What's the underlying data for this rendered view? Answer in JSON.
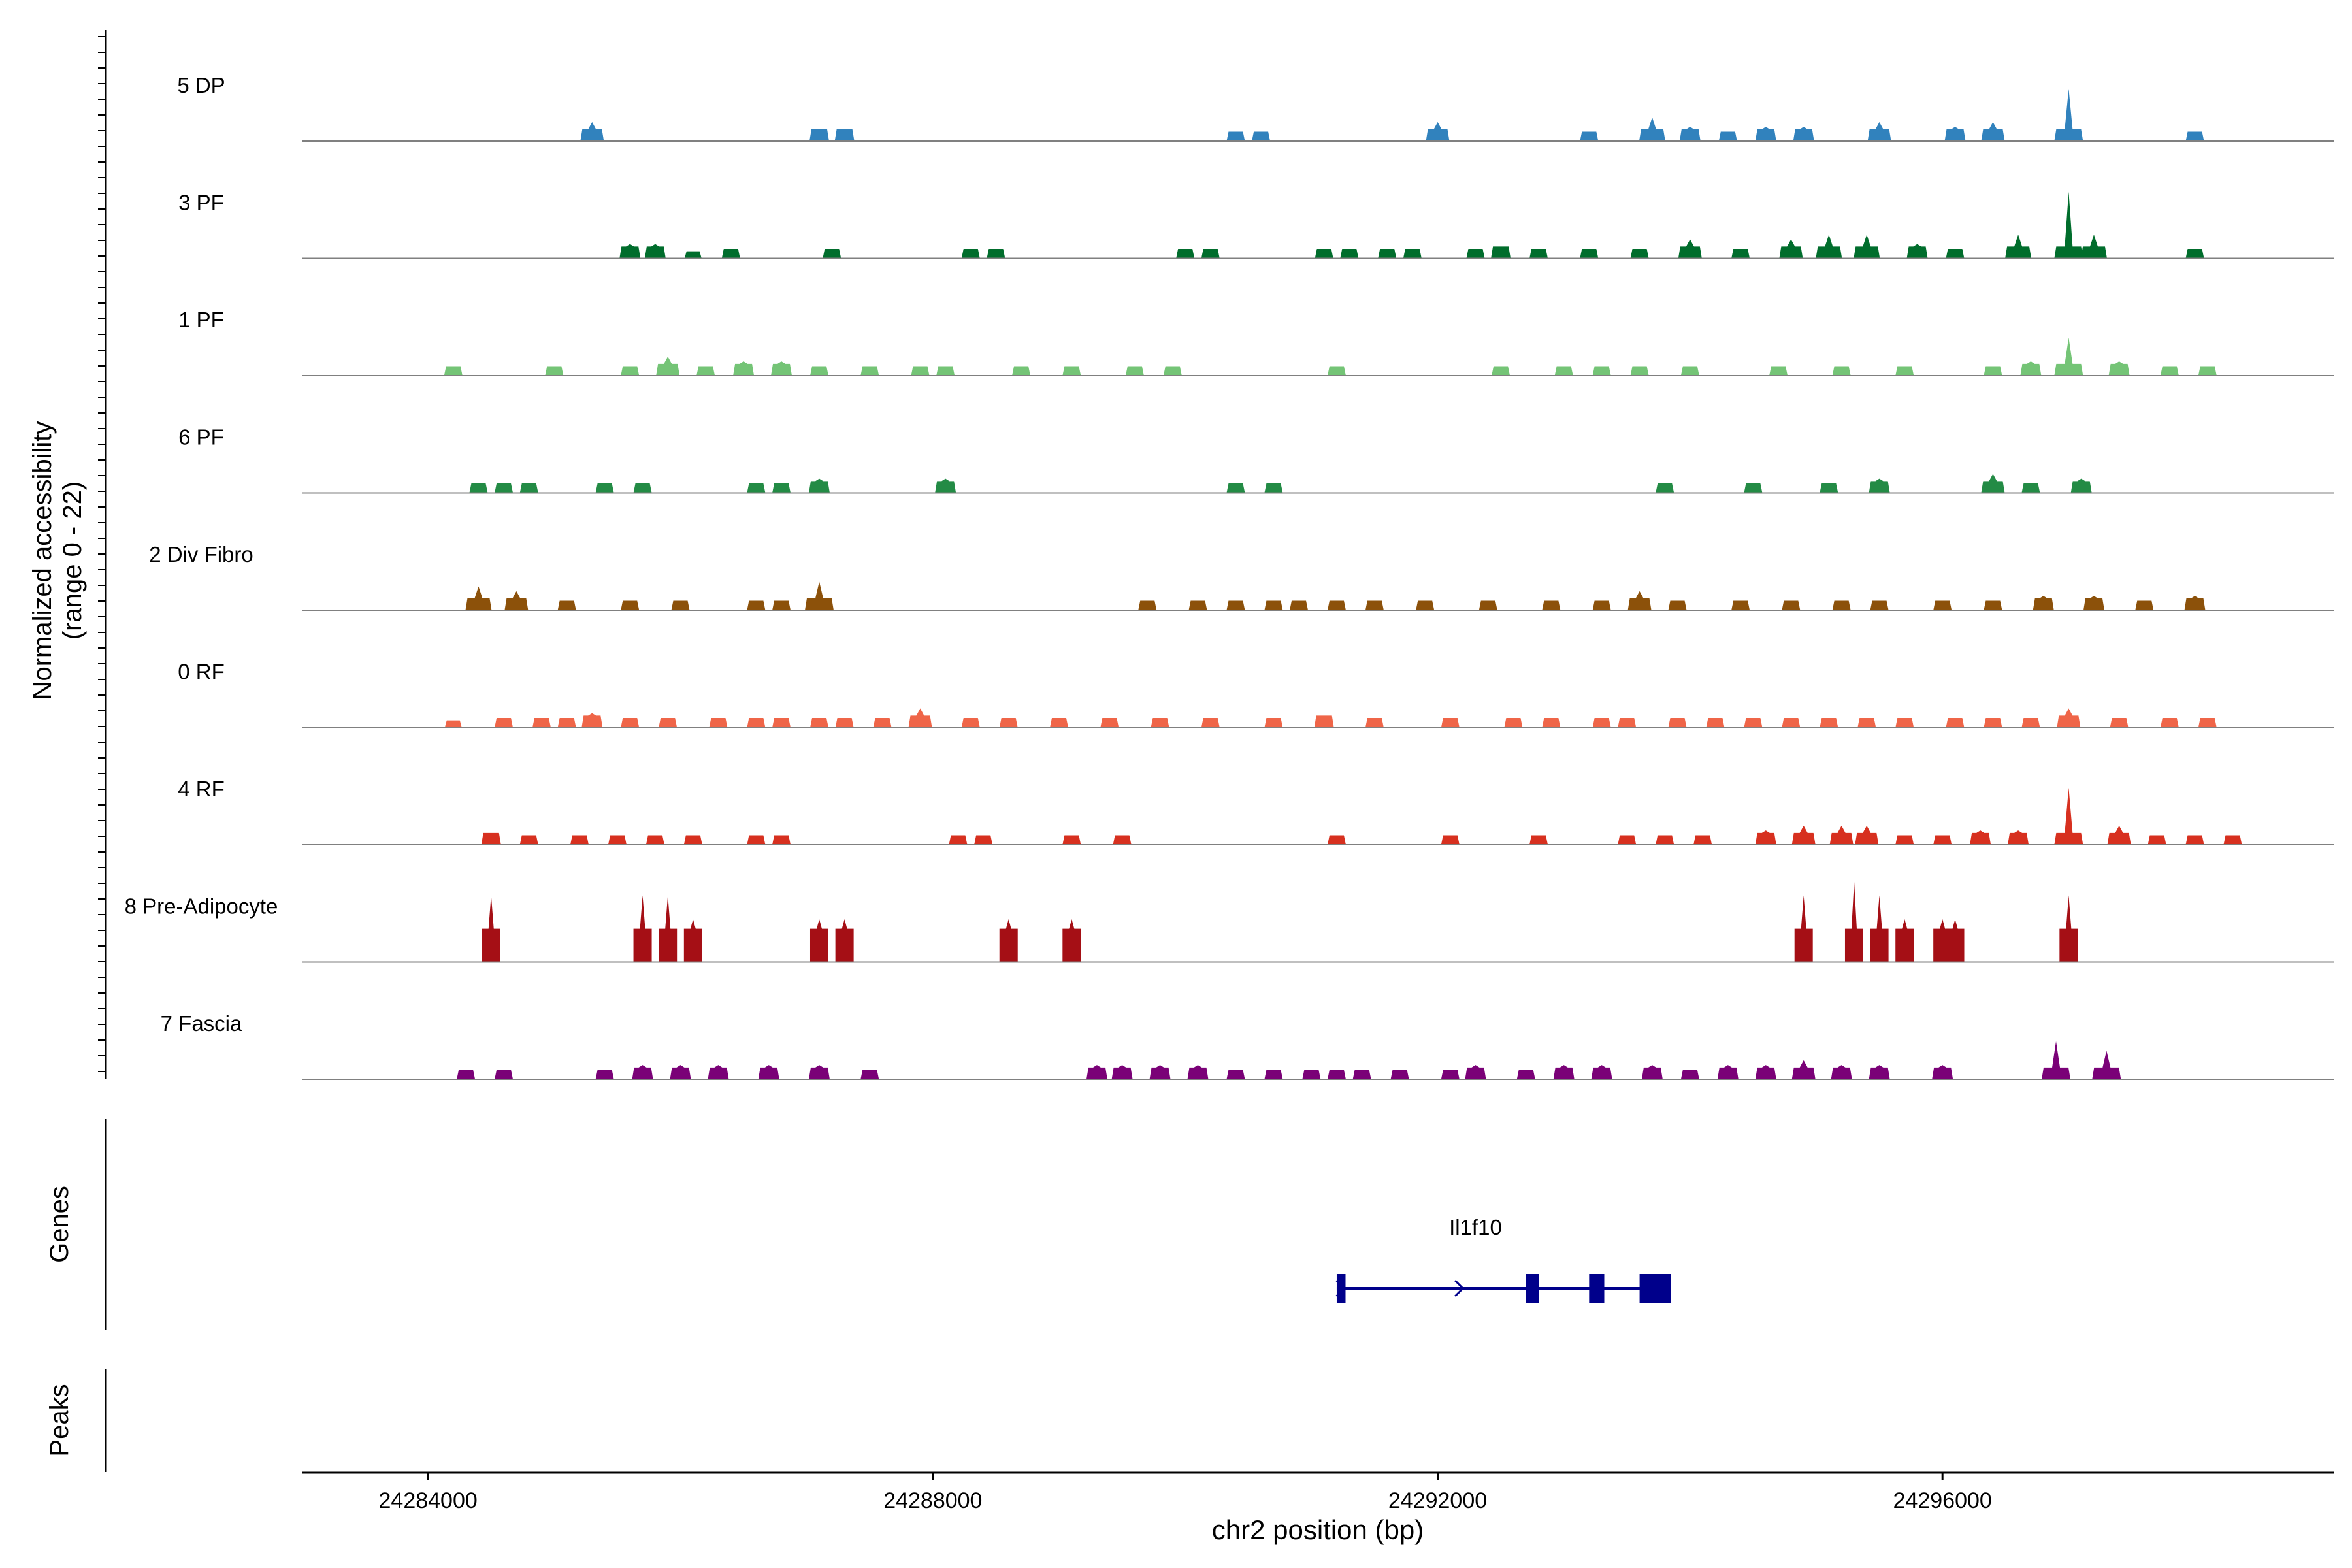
{
  "chart_data": {
    "type": "area",
    "title": "",
    "ylabel_line1": "Normalized accessibility",
    "ylabel_line2": "(range 0 - 22)",
    "ylim": [
      0,
      22
    ],
    "xlabel": "chr2 position (bp)",
    "xlim": [
      24283000,
      24299100
    ],
    "xticks": [
      24284000,
      24288000,
      24292000,
      24296000
    ],
    "xtick_labels": [
      "24284000",
      "24288000",
      "24292000",
      "24296000"
    ],
    "genes_label": "Genes",
    "peaks_label": "Peaks",
    "tracks": [
      {
        "name": "5 DP",
        "color": "#3182bd",
        "peaks": [
          [
            24285300,
            4
          ],
          [
            24287100,
            2.5
          ],
          [
            24287300,
            2.5
          ],
          [
            24290400,
            2
          ],
          [
            24290600,
            2
          ],
          [
            24292000,
            4
          ],
          [
            24293200,
            2
          ],
          [
            24293700,
            5
          ],
          [
            24294000,
            3
          ],
          [
            24294300,
            2
          ],
          [
            24294600,
            3
          ],
          [
            24294900,
            3
          ],
          [
            24295500,
            4
          ],
          [
            24296100,
            3
          ],
          [
            24296400,
            4
          ],
          [
            24297000,
            11
          ],
          [
            24298000,
            2
          ]
        ]
      },
      {
        "name": "3 PF",
        "color": "#006d2c",
        "peaks": [
          [
            24285600,
            3
          ],
          [
            24285800,
            3
          ],
          [
            24286100,
            1.5
          ],
          [
            24286400,
            2
          ],
          [
            24287200,
            2
          ],
          [
            24288300,
            2
          ],
          [
            24288500,
            2
          ],
          [
            24290000,
            2
          ],
          [
            24290200,
            2
          ],
          [
            24291100,
            2
          ],
          [
            24291300,
            2
          ],
          [
            24291600,
            2
          ],
          [
            24291800,
            2
          ],
          [
            24292300,
            2
          ],
          [
            24292500,
            2.5
          ],
          [
            24292800,
            2
          ],
          [
            24293200,
            2
          ],
          [
            24293600,
            2
          ],
          [
            24294000,
            4
          ],
          [
            24294400,
            2
          ],
          [
            24294800,
            4
          ],
          [
            24295100,
            5
          ],
          [
            24295400,
            5
          ],
          [
            24295800,
            3
          ],
          [
            24296100,
            2
          ],
          [
            24296600,
            5
          ],
          [
            24297000,
            14
          ],
          [
            24297200,
            5
          ],
          [
            24298000,
            2
          ]
        ]
      },
      {
        "name": "1 PF",
        "color": "#74c476",
        "peaks": [
          [
            24284200,
            2
          ],
          [
            24285000,
            2
          ],
          [
            24285600,
            2
          ],
          [
            24285900,
            4
          ],
          [
            24286200,
            2
          ],
          [
            24286500,
            3
          ],
          [
            24286800,
            3
          ],
          [
            24287100,
            2
          ],
          [
            24287500,
            2
          ],
          [
            24287900,
            2
          ],
          [
            24288100,
            2
          ],
          [
            24288700,
            2
          ],
          [
            24289100,
            2
          ],
          [
            24289600,
            2
          ],
          [
            24289900,
            2
          ],
          [
            24291200,
            2
          ],
          [
            24292500,
            2
          ],
          [
            24293000,
            2
          ],
          [
            24293300,
            2
          ],
          [
            24293600,
            2
          ],
          [
            24294000,
            2
          ],
          [
            24294700,
            2
          ],
          [
            24295200,
            2
          ],
          [
            24295700,
            2
          ],
          [
            24296400,
            2
          ],
          [
            24296700,
            3
          ],
          [
            24297000,
            8
          ],
          [
            24297400,
            3
          ],
          [
            24297800,
            2
          ],
          [
            24298100,
            2
          ]
        ]
      },
      {
        "name": "6 PF",
        "color": "#238b45",
        "peaks": [
          [
            24284400,
            2
          ],
          [
            24284600,
            2
          ],
          [
            24284800,
            2
          ],
          [
            24285400,
            2
          ],
          [
            24285700,
            2
          ],
          [
            24286600,
            2
          ],
          [
            24286800,
            2
          ],
          [
            24287100,
            3
          ],
          [
            24288100,
            3
          ],
          [
            24290400,
            2
          ],
          [
            24290700,
            2
          ],
          [
            24293800,
            2
          ],
          [
            24294500,
            2
          ],
          [
            24295100,
            2
          ],
          [
            24295500,
            3
          ],
          [
            24296400,
            4
          ],
          [
            24296700,
            2
          ],
          [
            24297100,
            3
          ]
        ]
      },
      {
        "name": "2 Div Fibro",
        "color": "#8c510a",
        "peaks": [
          [
            24284400,
            5
          ],
          [
            24284700,
            4
          ],
          [
            24285100,
            2
          ],
          [
            24285600,
            2
          ],
          [
            24286000,
            2
          ],
          [
            24286600,
            2
          ],
          [
            24286800,
            2
          ],
          [
            24287100,
            6
          ],
          [
            24289700,
            2
          ],
          [
            24290100,
            2
          ],
          [
            24290400,
            2
          ],
          [
            24290700,
            2
          ],
          [
            24290900,
            2
          ],
          [
            24291200,
            2
          ],
          [
            24291500,
            2
          ],
          [
            24291900,
            2
          ],
          [
            24292400,
            2
          ],
          [
            24292900,
            2
          ],
          [
            24293300,
            2
          ],
          [
            24293600,
            4
          ],
          [
            24293900,
            2
          ],
          [
            24294400,
            2
          ],
          [
            24294800,
            2
          ],
          [
            24295200,
            2
          ],
          [
            24295500,
            2
          ],
          [
            24296000,
            2
          ],
          [
            24296400,
            2
          ],
          [
            24296800,
            3
          ],
          [
            24297200,
            3
          ],
          [
            24297600,
            2
          ],
          [
            24298000,
            3
          ]
        ]
      },
      {
        "name": "0 RF",
        "color": "#ef6548",
        "peaks": [
          [
            24284200,
            1.5
          ],
          [
            24284600,
            2
          ],
          [
            24284900,
            2
          ],
          [
            24285100,
            2
          ],
          [
            24285300,
            3
          ],
          [
            24285600,
            2
          ],
          [
            24285900,
            2
          ],
          [
            24286300,
            2
          ],
          [
            24286600,
            2
          ],
          [
            24286800,
            2
          ],
          [
            24287100,
            2
          ],
          [
            24287300,
            2
          ],
          [
            24287600,
            2
          ],
          [
            24287900,
            4
          ],
          [
            24288300,
            2
          ],
          [
            24288600,
            2
          ],
          [
            24289000,
            2
          ],
          [
            24289400,
            2
          ],
          [
            24289800,
            2
          ],
          [
            24290200,
            2
          ],
          [
            24290700,
            2
          ],
          [
            24291100,
            2.5
          ],
          [
            24291500,
            2
          ],
          [
            24292100,
            2
          ],
          [
            24292600,
            2
          ],
          [
            24292900,
            2
          ],
          [
            24293300,
            2
          ],
          [
            24293500,
            2
          ],
          [
            24293900,
            2
          ],
          [
            24294200,
            2
          ],
          [
            24294500,
            2
          ],
          [
            24294800,
            2
          ],
          [
            24295100,
            2
          ],
          [
            24295400,
            2
          ],
          [
            24295700,
            2
          ],
          [
            24296100,
            2
          ],
          [
            24296400,
            2
          ],
          [
            24296700,
            2
          ],
          [
            24297000,
            4
          ],
          [
            24297400,
            2
          ],
          [
            24297800,
            2
          ],
          [
            24298100,
            2
          ]
        ]
      },
      {
        "name": "4 RF",
        "color": "#d7301f",
        "peaks": [
          [
            24284500,
            2.5
          ],
          [
            24284800,
            2
          ],
          [
            24285200,
            2
          ],
          [
            24285500,
            2
          ],
          [
            24285800,
            2
          ],
          [
            24286100,
            2
          ],
          [
            24286600,
            2
          ],
          [
            24286800,
            2
          ],
          [
            24288200,
            2
          ],
          [
            24288400,
            2
          ],
          [
            24289100,
            2
          ],
          [
            24289500,
            2
          ],
          [
            24291200,
            2
          ],
          [
            24292100,
            2
          ],
          [
            24292800,
            2
          ],
          [
            24293500,
            2
          ],
          [
            24293800,
            2
          ],
          [
            24294100,
            2
          ],
          [
            24294600,
            3
          ],
          [
            24294900,
            4
          ],
          [
            24295200,
            4
          ],
          [
            24295400,
            4
          ],
          [
            24295700,
            2
          ],
          [
            24296000,
            2
          ],
          [
            24296300,
            3
          ],
          [
            24296600,
            3
          ],
          [
            24297000,
            12
          ],
          [
            24297400,
            4
          ],
          [
            24297700,
            2
          ],
          [
            24298000,
            2
          ],
          [
            24298300,
            2
          ]
        ]
      },
      {
        "name": "8 Pre-Adipocyte",
        "color": "#a50f15",
        "peaks": [
          [
            24284500,
            14
          ],
          [
            24285700,
            14
          ],
          [
            24285900,
            14
          ],
          [
            24286100,
            9
          ],
          [
            24287100,
            9
          ],
          [
            24287300,
            9
          ],
          [
            24288600,
            9
          ],
          [
            24289100,
            9
          ],
          [
            24294900,
            14
          ],
          [
            24295300,
            17
          ],
          [
            24295500,
            14
          ],
          [
            24295700,
            9
          ],
          [
            24296000,
            9
          ],
          [
            24296100,
            9
          ],
          [
            24297000,
            14
          ]
        ]
      },
      {
        "name": "7 Fascia",
        "color": "#7a0177",
        "peaks": [
          [
            24284300,
            2
          ],
          [
            24284600,
            2
          ],
          [
            24285400,
            2
          ],
          [
            24285700,
            3
          ],
          [
            24286000,
            3
          ],
          [
            24286300,
            3
          ],
          [
            24286700,
            3
          ],
          [
            24287100,
            3
          ],
          [
            24287500,
            2
          ],
          [
            24289300,
            3
          ],
          [
            24289500,
            3
          ],
          [
            24289800,
            3
          ],
          [
            24290100,
            3
          ],
          [
            24290400,
            2
          ],
          [
            24290700,
            2
          ],
          [
            24291000,
            2
          ],
          [
            24291200,
            2
          ],
          [
            24291400,
            2
          ],
          [
            24291700,
            2
          ],
          [
            24292100,
            2
          ],
          [
            24292300,
            3
          ],
          [
            24292700,
            2
          ],
          [
            24293000,
            3
          ],
          [
            24293300,
            3
          ],
          [
            24293700,
            3
          ],
          [
            24294000,
            2
          ],
          [
            24294300,
            3
          ],
          [
            24294600,
            3
          ],
          [
            24294900,
            4
          ],
          [
            24295200,
            3
          ],
          [
            24295500,
            3
          ],
          [
            24296000,
            3
          ],
          [
            24296900,
            8
          ],
          [
            24297300,
            6
          ]
        ]
      }
    ],
    "gene": {
      "name": "Il1f10",
      "strand": "+",
      "start": 24291200,
      "end": 24293800,
      "exons": [
        [
          24291200,
          24291270
        ],
        [
          24292700,
          24292800
        ],
        [
          24293200,
          24293320
        ],
        [
          24293600,
          24293850
        ]
      ]
    }
  }
}
